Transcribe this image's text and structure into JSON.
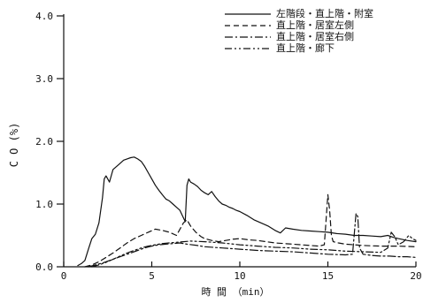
{
  "chart_data": {
    "type": "line",
    "xlabel": "時 間 （min）",
    "ylabel": "C O (%)",
    "xlim": [
      0,
      20
    ],
    "ylim": [
      0,
      4
    ],
    "xticks": [
      0,
      5,
      10,
      15,
      20
    ],
    "yticks": [
      0,
      1,
      2,
      3,
      4
    ],
    "xtick_labels": [
      "0",
      "5",
      "10",
      "15",
      "20"
    ],
    "ytick_labels": [
      "0.0",
      "1.0",
      "2.0",
      "3.0",
      "4.0"
    ],
    "grid": false,
    "legend_position": "top-right",
    "series": [
      {
        "name": "左階段・直上階・附室",
        "dash": "solid",
        "x": [
          0.8,
          1.0,
          1.2,
          1.4,
          1.6,
          1.8,
          2.0,
          2.2,
          2.3,
          2.4,
          2.6,
          2.8,
          3.0,
          3.2,
          3.4,
          3.6,
          3.8,
          4.0,
          4.2,
          4.4,
          4.6,
          4.8,
          5.0,
          5.2,
          5.4,
          5.6,
          5.8,
          6.0,
          6.2,
          6.4,
          6.6,
          6.8,
          6.9,
          7.0,
          7.1,
          7.2,
          7.4,
          7.6,
          7.8,
          8.0,
          8.2,
          8.4,
          8.6,
          8.8,
          9.0,
          9.2,
          9.4,
          9.6,
          9.8,
          10.0,
          10.4,
          10.8,
          11.2,
          11.6,
          12.0,
          12.3,
          12.6,
          13.0,
          13.5,
          14.0,
          14.5,
          15.0,
          15.5,
          16.0,
          16.5,
          17.0,
          17.5,
          18.0,
          18.4,
          18.7,
          19.0,
          19.5,
          20.0
        ],
        "y": [
          0.02,
          0.05,
          0.1,
          0.28,
          0.45,
          0.52,
          0.7,
          1.1,
          1.4,
          1.45,
          1.35,
          1.55,
          1.6,
          1.65,
          1.7,
          1.72,
          1.74,
          1.75,
          1.72,
          1.68,
          1.6,
          1.5,
          1.4,
          1.3,
          1.22,
          1.15,
          1.08,
          1.05,
          1.0,
          0.95,
          0.9,
          0.78,
          0.72,
          1.3,
          1.4,
          1.35,
          1.32,
          1.28,
          1.22,
          1.18,
          1.15,
          1.2,
          1.12,
          1.05,
          1.0,
          0.98,
          0.95,
          0.93,
          0.9,
          0.88,
          0.82,
          0.75,
          0.7,
          0.65,
          0.58,
          0.54,
          0.62,
          0.6,
          0.58,
          0.57,
          0.56,
          0.55,
          0.53,
          0.52,
          0.5,
          0.5,
          0.49,
          0.48,
          0.5,
          0.47,
          0.45,
          0.42,
          0.4
        ]
      },
      {
        "name": "直上階・居室左側",
        "dash": "dashed",
        "x": [
          1.2,
          1.6,
          2.0,
          2.4,
          2.8,
          3.2,
          3.6,
          4.0,
          4.4,
          4.8,
          5.2,
          5.6,
          6.0,
          6.4,
          6.8,
          7.0,
          7.2,
          7.5,
          7.8,
          8.0,
          8.4,
          8.8,
          9.2,
          9.6,
          10.0,
          10.5,
          11.0,
          11.5,
          12.0,
          13.0,
          14.0,
          14.5,
          14.8,
          15.0,
          15.1,
          15.2,
          15.3,
          15.6,
          16.0,
          16.5,
          17.0,
          18.0,
          19.0,
          20.0
        ],
        "y": [
          0.0,
          0.03,
          0.08,
          0.15,
          0.22,
          0.3,
          0.38,
          0.45,
          0.5,
          0.55,
          0.6,
          0.58,
          0.55,
          0.5,
          0.7,
          0.75,
          0.65,
          0.55,
          0.48,
          0.45,
          0.42,
          0.4,
          0.42,
          0.44,
          0.45,
          0.43,
          0.42,
          0.4,
          0.38,
          0.36,
          0.34,
          0.33,
          0.35,
          1.15,
          0.9,
          0.5,
          0.4,
          0.38,
          0.36,
          0.35,
          0.34,
          0.33,
          0.33,
          0.32
        ]
      },
      {
        "name": "直上階・居室右側",
        "dash": "dash-dot",
        "x": [
          1.4,
          1.8,
          2.2,
          2.6,
          3.0,
          3.4,
          3.8,
          4.2,
          4.6,
          5.0,
          5.4,
          5.8,
          6.2,
          6.6,
          7.0,
          7.6,
          8.0,
          9.0,
          10.0,
          11.0,
          12.0,
          13.0,
          14.0,
          15.0,
          16.0,
          16.4,
          16.6,
          16.7,
          16.8,
          17.0,
          17.5,
          18.0,
          18.5,
          19.0,
          19.5,
          20.0
        ],
        "y": [
          0.0,
          0.03,
          0.06,
          0.1,
          0.14,
          0.18,
          0.22,
          0.26,
          0.3,
          0.33,
          0.35,
          0.36,
          0.37,
          0.38,
          0.36,
          0.34,
          0.32,
          0.3,
          0.28,
          0.26,
          0.25,
          0.24,
          0.22,
          0.2,
          0.19,
          0.2,
          0.85,
          0.8,
          0.3,
          0.2,
          0.18,
          0.17,
          0.17,
          0.16,
          0.16,
          0.15
        ]
      },
      {
        "name": "直上階・廊下",
        "dash": "dash-dot-dot",
        "x": [
          1.6,
          2.0,
          2.4,
          2.8,
          3.2,
          3.6,
          4.0,
          4.4,
          4.8,
          5.2,
          5.6,
          6.0,
          6.4,
          6.8,
          7.2,
          8.0,
          9.0,
          10.0,
          11.0,
          12.0,
          13.0,
          14.0,
          15.0,
          16.0,
          17.0,
          18.0,
          18.4,
          18.6,
          18.8,
          19.0,
          19.3,
          19.6,
          19.8,
          20.0
        ],
        "y": [
          0.0,
          0.03,
          0.07,
          0.12,
          0.17,
          0.22,
          0.26,
          0.3,
          0.33,
          0.35,
          0.37,
          0.38,
          0.39,
          0.4,
          0.41,
          0.4,
          0.38,
          0.35,
          0.33,
          0.31,
          0.3,
          0.28,
          0.27,
          0.25,
          0.24,
          0.23,
          0.3,
          0.55,
          0.48,
          0.35,
          0.4,
          0.5,
          0.45,
          0.42
        ]
      }
    ]
  }
}
